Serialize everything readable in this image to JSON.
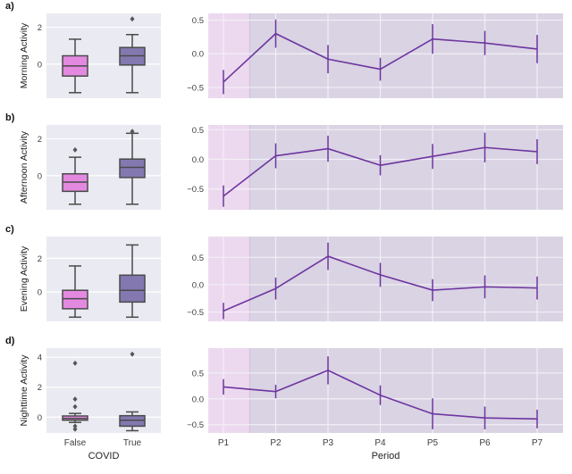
{
  "figure": {
    "box_xlabel": "COVID",
    "line_xlabel": "Period",
    "box_categories": [
      "False",
      "True"
    ],
    "line_categories": [
      "P1",
      "P2",
      "P3",
      "P4",
      "P5",
      "P6",
      "P7"
    ],
    "colors": {
      "box_false_fill": "#e489e0",
      "box_true_fill": "#8478b0",
      "box_edge": "#4a4a4a",
      "box_panel_bg": "#eaeaf2",
      "line_color": "#6e35a0",
      "line_panel_bg": "#d9d3e3",
      "highlight_band": "#ecd9f0",
      "band_edge": "#cbb8d8",
      "grid_box": "#ffffff",
      "grid_line": "#f2eff6",
      "tick_text": "#3d3d3d",
      "label_text": "#222222",
      "outlier": "#555555"
    }
  },
  "chart_data": [
    {
      "panel": "a)",
      "ylabel": "Morning Activity",
      "boxplot": {
        "type": "box",
        "xlabel": "COVID",
        "categories": [
          "False",
          "True"
        ],
        "yticks": [
          0,
          2
        ],
        "ylim": [
          -1.85,
          2.75
        ],
        "series": [
          {
            "name": "False",
            "whislo": -1.55,
            "q1": -0.65,
            "med": -0.1,
            "q3": 0.45,
            "whishi": 1.35,
            "outliers": []
          },
          {
            "name": "True",
            "whislo": -1.55,
            "q1": -0.05,
            "med": 0.45,
            "q3": 0.9,
            "whishi": 1.6,
            "outliers": [
              2.45
            ]
          }
        ]
      },
      "lineplot": {
        "type": "line",
        "xlabel": "Period",
        "x": [
          "P1",
          "P2",
          "P3",
          "P4",
          "P5",
          "P6",
          "P7"
        ],
        "y": [
          -0.42,
          0.3,
          -0.08,
          -0.23,
          0.22,
          0.16,
          0.07
        ],
        "yerr": [
          0.18,
          0.21,
          0.21,
          0.17,
          0.22,
          0.18,
          0.21
        ],
        "yticks": [
          0.5,
          0.0,
          -0.5
        ],
        "ylim": [
          -0.66,
          0.6
        ],
        "highlight_band": {
          "to_x": 1.5
        }
      }
    },
    {
      "panel": "b)",
      "ylabel": "Afternoon Activity",
      "boxplot": {
        "type": "box",
        "xlabel": "COVID",
        "categories": [
          "False",
          "True"
        ],
        "yticks": [
          0,
          2
        ],
        "ylim": [
          -1.85,
          2.75
        ],
        "series": [
          {
            "name": "False",
            "whislo": -1.55,
            "q1": -0.85,
            "med": -0.35,
            "q3": 0.1,
            "whishi": 1.0,
            "outliers": [
              1.4
            ]
          },
          {
            "name": "True",
            "whislo": -1.55,
            "q1": -0.1,
            "med": 0.45,
            "q3": 0.9,
            "whishi": 2.3,
            "outliers": [
              2.4
            ]
          }
        ]
      },
      "lineplot": {
        "type": "line",
        "xlabel": "Period",
        "x": [
          "P1",
          "P2",
          "P3",
          "P4",
          "P5",
          "P6",
          "P7"
        ],
        "y": [
          -0.62,
          0.06,
          0.18,
          -0.1,
          0.05,
          0.2,
          0.13
        ],
        "yerr": [
          0.18,
          0.21,
          0.22,
          0.17,
          0.21,
          0.25,
          0.21
        ],
        "yticks": [
          0.5,
          0.0,
          -0.5
        ],
        "ylim": [
          -0.85,
          0.58
        ],
        "highlight_band": {
          "to_x": 1.5
        }
      }
    },
    {
      "panel": "c)",
      "ylabel": "Evening Activity",
      "boxplot": {
        "type": "box",
        "xlabel": "COVID",
        "categories": [
          "False",
          "True"
        ],
        "yticks": [
          0,
          2
        ],
        "ylim": [
          -1.75,
          3.3
        ],
        "series": [
          {
            "name": "False",
            "whislo": -1.5,
            "q1": -1.0,
            "med": -0.4,
            "q3": 0.1,
            "whishi": 1.55,
            "outliers": []
          },
          {
            "name": "True",
            "whislo": -1.5,
            "q1": -0.6,
            "med": 0.1,
            "q3": 1.0,
            "whishi": 2.8,
            "outliers": []
          }
        ]
      },
      "lineplot": {
        "type": "line",
        "xlabel": "Period",
        "x": [
          "P1",
          "P2",
          "P3",
          "P4",
          "P5",
          "P6",
          "P7"
        ],
        "y": [
          -0.48,
          -0.07,
          0.52,
          0.18,
          -0.1,
          -0.04,
          -0.06
        ],
        "yerr": [
          0.15,
          0.2,
          0.25,
          0.22,
          0.2,
          0.21,
          0.21
        ],
        "yticks": [
          0.5,
          0.0,
          -0.5
        ],
        "ylim": [
          -0.67,
          0.88
        ],
        "highlight_band": {
          "to_x": 1.5
        }
      }
    },
    {
      "panel": "d)",
      "ylabel": "Nighttime Activity",
      "boxplot": {
        "type": "box",
        "xlabel": "COVID",
        "categories": [
          "False",
          "True"
        ],
        "yticks": [
          0,
          2,
          4
        ],
        "ylim": [
          -1.05,
          4.6
        ],
        "series": [
          {
            "name": "False",
            "whislo": -0.35,
            "q1": -0.2,
            "med": -0.08,
            "q3": 0.08,
            "whishi": 0.25,
            "outliers": [
              3.6,
              1.2,
              0.7,
              -0.6,
              -0.8
            ]
          },
          {
            "name": "True",
            "whislo": -0.9,
            "q1": -0.6,
            "med": -0.2,
            "q3": 0.1,
            "whishi": 0.35,
            "outliers": [
              4.2
            ]
          }
        ]
      },
      "lineplot": {
        "type": "line",
        "xlabel": "Period",
        "x": [
          "P1",
          "P2",
          "P3",
          "P4",
          "P5",
          "P6",
          "P7"
        ],
        "y": [
          0.23,
          0.14,
          0.55,
          0.07,
          -0.29,
          -0.37,
          -0.39
        ],
        "yerr": [
          0.15,
          0.13,
          0.27,
          0.19,
          0.3,
          0.22,
          0.18
        ],
        "yticks": [
          0.5,
          0.0,
          -0.5
        ],
        "ylim": [
          -0.66,
          0.98
        ],
        "highlight_band": {
          "to_x": 1.5
        }
      }
    }
  ]
}
